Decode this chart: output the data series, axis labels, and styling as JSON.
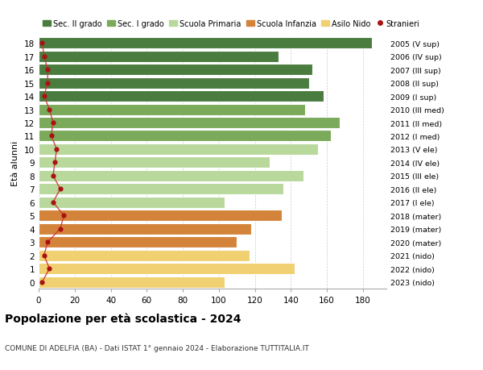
{
  "ages": [
    18,
    17,
    16,
    15,
    14,
    13,
    12,
    11,
    10,
    9,
    8,
    7,
    6,
    5,
    4,
    3,
    2,
    1,
    0
  ],
  "right_labels": [
    "2005 (V sup)",
    "2006 (IV sup)",
    "2007 (III sup)",
    "2008 (II sup)",
    "2009 (I sup)",
    "2010 (III med)",
    "2011 (II med)",
    "2012 (I med)",
    "2013 (V ele)",
    "2014 (IV ele)",
    "2015 (III ele)",
    "2016 (II ele)",
    "2017 (I ele)",
    "2018 (mater)",
    "2019 (mater)",
    "2020 (mater)",
    "2021 (nido)",
    "2022 (nido)",
    "2023 (nido)"
  ],
  "bar_values": [
    185,
    133,
    152,
    150,
    158,
    148,
    167,
    162,
    155,
    128,
    147,
    136,
    103,
    135,
    118,
    110,
    117,
    142,
    103
  ],
  "bar_colors": [
    "#4a7c3f",
    "#4a7c3f",
    "#4a7c3f",
    "#4a7c3f",
    "#4a7c3f",
    "#7aaa5a",
    "#7aaa5a",
    "#7aaa5a",
    "#b8d89c",
    "#b8d89c",
    "#b8d89c",
    "#b8d89c",
    "#b8d89c",
    "#d4843a",
    "#d4843a",
    "#d4843a",
    "#f0d070",
    "#f0d070",
    "#f0d070"
  ],
  "stranieri_values": [
    2,
    3,
    5,
    5,
    3,
    6,
    8,
    7,
    10,
    9,
    8,
    12,
    8,
    14,
    12,
    5,
    3,
    6,
    2
  ],
  "legend_labels": [
    "Sec. II grado",
    "Sec. I grado",
    "Scuola Primaria",
    "Scuola Infanzia",
    "Asilo Nido",
    "Stranieri"
  ],
  "legend_colors": [
    "#4a7c3f",
    "#7aaa5a",
    "#b8d89c",
    "#d4843a",
    "#f0d070",
    "#aa1111"
  ],
  "xlabel_left": "Età alunni",
  "x_ticks": [
    0,
    20,
    40,
    60,
    80,
    100,
    120,
    140,
    160,
    180
  ],
  "xlim": [
    0,
    193
  ],
  "title": "Popolazione per età scolastica - 2024",
  "subtitle": "COMUNE DI ADELFIA (BA) - Dati ISTAT 1° gennaio 2024 - Elaborazione TUTTITALIA.IT",
  "bg_color": "#ffffff",
  "bar_edge_color": "#ffffff",
  "stranieri_color": "#aa1111",
  "stranieri_line_color": "#cc3333"
}
